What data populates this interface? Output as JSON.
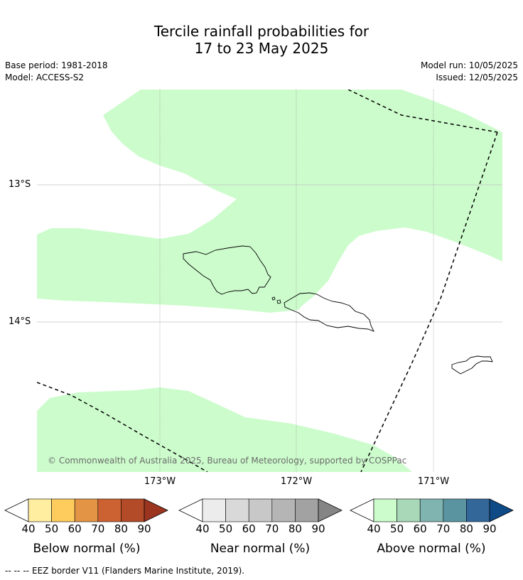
{
  "title_line1": "Tercile rainfall probabilities for",
  "title_line2": "17 to 23 May 2025",
  "base_period": "Base period: 1981-2018",
  "model": "Model: ACCESS-S2",
  "model_run": "Model run: 10/05/2025",
  "issued": "Issued: 12/05/2025",
  "lat_labels": [
    "13°S",
    "14°S"
  ],
  "lon_labels": [
    "173°W",
    "172°W",
    "171°W"
  ],
  "copyright": "© Commonwealth of Australia 2025, Bureau of Meteorology, supported by COSPPac",
  "footer": {
    "dash_glyphs": [
      "--",
      "--",
      "--"
    ],
    "text": "EEZ border V11 (Flanders Marine Institute, 2019)."
  },
  "colorbars": [
    {
      "label": "Below normal (%)",
      "ticks": [
        "40",
        "50",
        "60",
        "70",
        "80",
        "90"
      ],
      "colors": [
        "#ffeda0",
        "#fecc5c",
        "#e39545",
        "#cc6132",
        "#b34b28",
        "#9b3520"
      ]
    },
    {
      "label": "Near normal (%)",
      "ticks": [
        "40",
        "50",
        "60",
        "70",
        "80",
        "90"
      ],
      "colors": [
        "#ececec",
        "#d9d9d9",
        "#c8c8c8",
        "#b5b5b5",
        "#a2a2a2",
        "#858585"
      ]
    },
    {
      "label": "Above normal (%)",
      "ticks": [
        "40",
        "50",
        "60",
        "70",
        "80",
        "90"
      ],
      "colors": [
        "#ccfccc",
        "#a8d8b8",
        "#80b4b0",
        "#5a94a0",
        "#336699",
        "#0e4a86"
      ]
    }
  ],
  "colors": {
    "above_normal_40_50": "#ccfccc",
    "eez_border": "#000000",
    "graticule": "#999999"
  }
}
